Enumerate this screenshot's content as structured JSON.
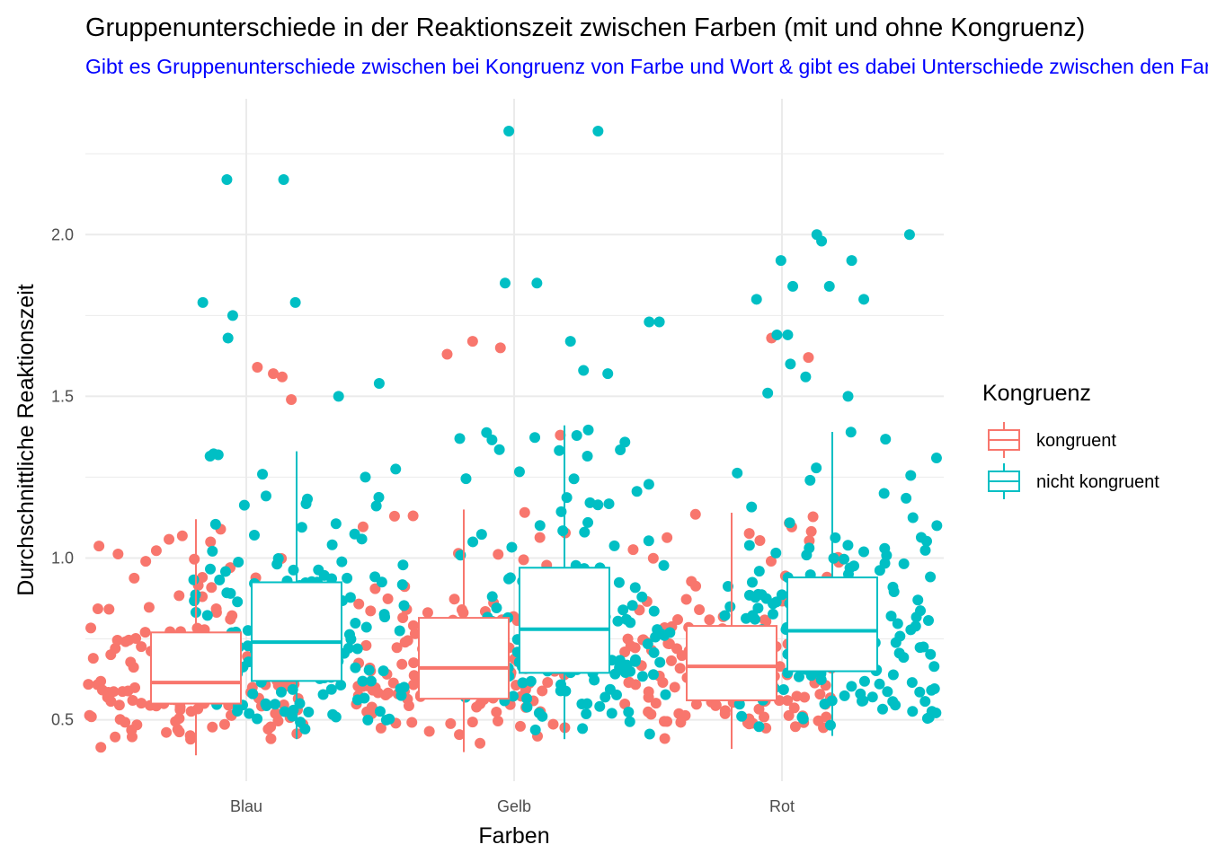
{
  "chart_data": {
    "type": "boxplot-jitter",
    "title": "Gruppenunterschiede in der Reaktionszeit zwischen Farben (mit und ohne Kongruenz)",
    "subtitle": "Gibt es Gruppenunterschiede zwischen bei Kongruenz von Farbe und Wort & gibt es dabei Unterschiede zwischen den Farben?",
    "xlabel": "Farben",
    "ylabel": "Durchschnittliche Reaktionszeit",
    "categories": [
      "Blau",
      "Gelb",
      "Rot"
    ],
    "ylim": [
      0.31,
      2.42
    ],
    "yticks": [
      0.5,
      1.0,
      1.5,
      2.0
    ],
    "ytick_labels": [
      "0.5",
      "1.0",
      "1.5",
      "2.0"
    ],
    "grid": true,
    "legend": {
      "title": "Kongruenz",
      "position": "right",
      "entries": [
        "kongruent",
        "nicht kongruent"
      ]
    },
    "colors": {
      "kongruent": "#F8766D",
      "nicht kongruent": "#00BFC4",
      "subtitle": "#0000FF",
      "grid": "#EBEBEB"
    },
    "series": [
      {
        "name": "kongruent",
        "boxes": [
          {
            "category": "Blau",
            "min": 0.39,
            "q1": 0.55,
            "median": 0.615,
            "q3": 0.77,
            "max": 1.12
          },
          {
            "category": "Gelb",
            "min": 0.4,
            "q1": 0.565,
            "median": 0.66,
            "q3": 0.815,
            "max": 1.15
          },
          {
            "category": "Rot",
            "min": 0.41,
            "q1": 0.56,
            "median": 0.665,
            "q3": 0.79,
            "max": 1.14
          }
        ],
        "outliers": [
          {
            "category": "Blau",
            "values": [
              1.56,
              1.59,
              1.57,
              1.49
            ]
          },
          {
            "category": "Gelb",
            "values": [
              1.67,
              1.65,
              1.63,
              1.38
            ]
          },
          {
            "category": "Rot",
            "values": [
              1.68,
              1.62
            ]
          }
        ]
      },
      {
        "name": "nicht kongruent",
        "boxes": [
          {
            "category": "Blau",
            "min": 0.44,
            "q1": 0.62,
            "median": 0.74,
            "q3": 0.925,
            "max": 1.33
          },
          {
            "category": "Gelb",
            "min": 0.44,
            "q1": 0.645,
            "median": 0.78,
            "q3": 0.97,
            "max": 1.41
          },
          {
            "category": "Rot",
            "min": 0.45,
            "q1": 0.65,
            "median": 0.775,
            "q3": 0.94,
            "max": 1.39
          }
        ],
        "outliers": [
          {
            "category": "Blau",
            "values": [
              2.17,
              2.17,
              1.79,
              1.79,
              1.75,
              1.68,
              1.54,
              1.5
            ]
          },
          {
            "category": "Gelb",
            "values": [
              2.32,
              2.32,
              1.85,
              1.85,
              1.73,
              1.73,
              1.67,
              1.58,
              1.57
            ]
          },
          {
            "category": "Rot",
            "values": [
              2.0,
              2.0,
              1.98,
              1.92,
              1.92,
              1.84,
              1.84,
              1.8,
              1.8,
              1.69,
              1.69,
              1.6,
              1.56,
              1.51,
              1.5
            ]
          }
        ]
      }
    ]
  }
}
